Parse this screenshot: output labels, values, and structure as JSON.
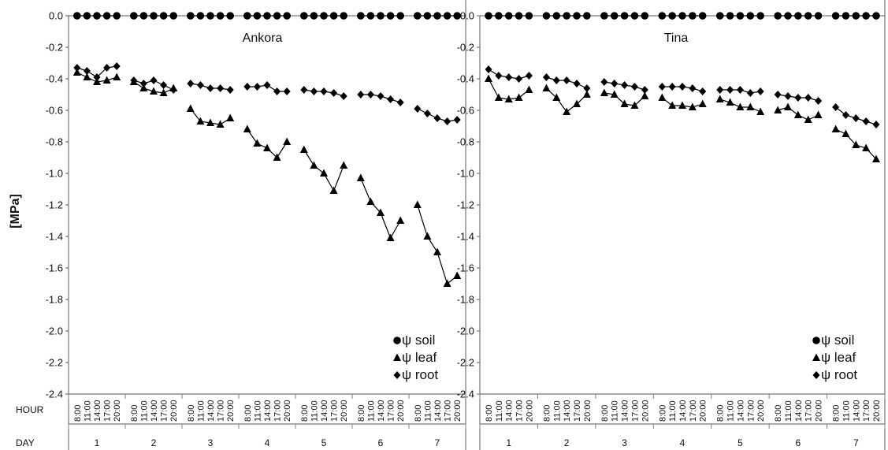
{
  "y_axis_label": "[MPa]",
  "hour_row_label": "HOUR",
  "day_row_label": "DAY",
  "hours": [
    "8:00",
    "11:00",
    "14:00",
    "17:00",
    "20:00"
  ],
  "days": [
    "1",
    "2",
    "3",
    "4",
    "5",
    "6",
    "7"
  ],
  "colors": {
    "series": "#000000",
    "frame": "#5a5a5a",
    "tick": "#7f7f7f"
  },
  "legend": [
    {
      "marker": "circle",
      "label": "ψ soil"
    },
    {
      "marker": "triangle",
      "label": "ψ leaf"
    },
    {
      "marker": "diamond",
      "label": "ψ root"
    }
  ],
  "chart_data": [
    {
      "type": "line",
      "title": "Ankora",
      "ylabel": "[MPa]",
      "ylim": [
        -2.4,
        0.0
      ],
      "yticks": [
        "0.0",
        "-0.2",
        "-0.4",
        "-0.6",
        "-0.8",
        "-1.0",
        "-1.2",
        "-1.4",
        "-1.6",
        "-1.8",
        "-2.0",
        "-2.2",
        "-2.4"
      ],
      "grid": false,
      "legend_position": "bottom-right",
      "x_groups": [
        "1",
        "2",
        "3",
        "4",
        "5",
        "6",
        "7"
      ],
      "x_hours": [
        "8:00",
        "11:00",
        "14:00",
        "17:00",
        "20:00"
      ],
      "series": [
        {
          "name": "ψ soil",
          "marker": "circle",
          "values": [
            [
              0,
              0,
              0,
              0,
              0
            ],
            [
              0,
              0,
              0,
              0,
              0
            ],
            [
              0,
              0,
              0,
              0,
              0
            ],
            [
              0,
              0,
              0,
              0,
              0
            ],
            [
              0,
              0,
              0,
              0,
              0
            ],
            [
              0,
              0,
              0,
              0,
              0
            ],
            [
              0,
              0,
              0,
              0,
              0
            ]
          ]
        },
        {
          "name": "ψ leaf",
          "marker": "triangle",
          "values": [
            [
              -0.36,
              -0.39,
              -0.42,
              -0.41,
              -0.39
            ],
            [
              -0.42,
              -0.46,
              -0.48,
              -0.49,
              -0.46
            ],
            [
              -0.59,
              -0.67,
              -0.68,
              -0.69,
              -0.65
            ],
            [
              -0.72,
              -0.81,
              -0.84,
              -0.9,
              -0.8
            ],
            [
              -0.85,
              -0.95,
              -1.0,
              -1.11,
              -0.95
            ],
            [
              -1.03,
              -1.18,
              -1.25,
              -1.41,
              -1.3
            ],
            [
              -1.2,
              -1.4,
              -1.5,
              -1.7,
              -1.65
            ]
          ]
        },
        {
          "name": "ψ root",
          "marker": "diamond",
          "values": [
            [
              -0.33,
              -0.35,
              -0.39,
              -0.33,
              -0.32
            ],
            [
              -0.41,
              -0.43,
              -0.41,
              -0.44,
              -0.47
            ],
            [
              -0.43,
              -0.44,
              -0.46,
              -0.46,
              -0.47
            ],
            [
              -0.45,
              -0.45,
              -0.44,
              -0.48,
              -0.48
            ],
            [
              -0.47,
              -0.48,
              -0.48,
              -0.49,
              -0.51
            ],
            [
              -0.5,
              -0.5,
              -0.51,
              -0.53,
              -0.55
            ],
            [
              -0.59,
              -0.62,
              -0.65,
              -0.67,
              -0.66
            ]
          ]
        }
      ]
    },
    {
      "type": "line",
      "title": "Tina",
      "ylim": [
        -2.4,
        0.0
      ],
      "yticks": [
        "0.0",
        "-0.2",
        "-0.4",
        "-0.6",
        "-0.8",
        "-1.0",
        "-1.2",
        "-1.4",
        "-1.6",
        "-1.8",
        "-2.0",
        "-2.2",
        "-2.4"
      ],
      "grid": false,
      "legend_position": "bottom-right",
      "x_groups": [
        "1",
        "2",
        "3",
        "4",
        "5",
        "6",
        "7"
      ],
      "x_hours": [
        "8:00",
        "11:00",
        "14:00",
        "17:00",
        "20:00"
      ],
      "series": [
        {
          "name": "ψ soil",
          "marker": "circle",
          "values": [
            [
              0,
              0,
              0,
              0,
              0
            ],
            [
              0,
              0,
              0,
              0,
              0
            ],
            [
              0,
              0,
              0,
              0,
              0
            ],
            [
              0,
              0,
              0,
              0,
              0
            ],
            [
              0,
              0,
              0,
              0,
              0
            ],
            [
              0,
              0,
              0,
              0,
              0
            ],
            [
              0,
              0,
              0,
              0,
              0
            ]
          ]
        },
        {
          "name": "ψ leaf",
          "marker": "triangle",
          "values": [
            [
              -0.4,
              -0.52,
              -0.53,
              -0.52,
              -0.47
            ],
            [
              -0.46,
              -0.52,
              -0.61,
              -0.56,
              -0.5
            ],
            [
              -0.49,
              -0.5,
              -0.56,
              -0.57,
              -0.51
            ],
            [
              -0.52,
              -0.57,
              -0.57,
              -0.58,
              -0.56
            ],
            [
              -0.53,
              -0.55,
              -0.58,
              -0.58,
              -0.61
            ],
            [
              -0.6,
              -0.58,
              -0.63,
              -0.66,
              -0.63
            ],
            [
              -0.72,
              -0.75,
              -0.82,
              -0.84,
              -0.91
            ]
          ]
        },
        {
          "name": "ψ root",
          "marker": "diamond",
          "values": [
            [
              -0.34,
              -0.38,
              -0.39,
              -0.4,
              -0.38
            ],
            [
              -0.39,
              -0.41,
              -0.41,
              -0.43,
              -0.46
            ],
            [
              -0.42,
              -0.43,
              -0.44,
              -0.45,
              -0.47
            ],
            [
              -0.45,
              -0.45,
              -0.45,
              -0.46,
              -0.48
            ],
            [
              -0.47,
              -0.47,
              -0.47,
              -0.49,
              -0.48
            ],
            [
              -0.5,
              -0.51,
              -0.52,
              -0.52,
              -0.54
            ],
            [
              -0.58,
              -0.63,
              -0.65,
              -0.67,
              -0.69
            ]
          ]
        }
      ]
    }
  ]
}
